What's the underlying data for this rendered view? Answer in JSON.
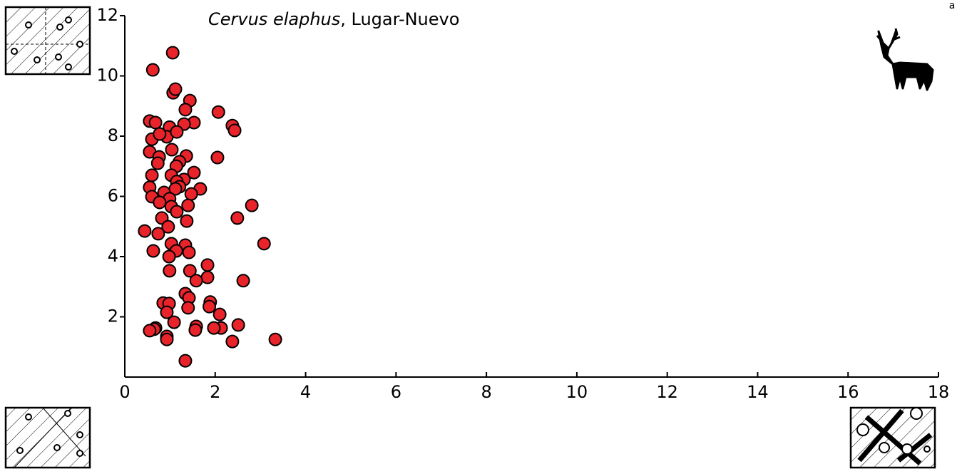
{
  "chart_data": {
    "type": "scatter",
    "title_species": "Cervus elaphus",
    "title_rest": ", Lugar-Nuevo",
    "panel_label": "a",
    "color": "#e8232a",
    "xlim": [
      0,
      18
    ],
    "xticks": [
      0,
      2,
      4,
      6,
      8,
      10,
      12,
      14,
      16,
      18
    ],
    "ylim": [
      0,
      12
    ],
    "yticks": [
      2,
      4,
      6,
      8,
      10,
      12
    ],
    "grid": false,
    "x": [
      1.06,
      0.62,
      1.07,
      1.12,
      1.44,
      2.07,
      1.34,
      0.55,
      0.68,
      1.53,
      1.31,
      0.99,
      2.38,
      2.43,
      0.6,
      0.93,
      1.15,
      0.77,
      0.55,
      1.04,
      0.76,
      1.36,
      2.05,
      0.73,
      1.21,
      1.14,
      0.6,
      1.03,
      1.53,
      1.31,
      1.15,
      0.55,
      0.87,
      1.21,
      1.67,
      1.12,
      0.6,
      1.47,
      0.99,
      0.77,
      2.81,
      1.4,
      1.03,
      1.15,
      0.82,
      1.37,
      2.49,
      0.96,
      0.44,
      0.74,
      3.08,
      1.03,
      1.34,
      0.63,
      1.14,
      1.42,
      0.98,
      1.83,
      1.44,
      0.99,
      1.83,
      1.58,
      2.62,
      1.34,
      1.42,
      1.89,
      1.87,
      1.4,
      0.85,
      0.98,
      0.93,
      2.1,
      1.09,
      2.51,
      1.58,
      2.13,
      1.97,
      0.68,
      0.65,
      0.55,
      1.56,
      0.93,
      0.93,
      3.33,
      2.38,
      1.34
    ],
    "values": [
      10.77,
      10.2,
      9.44,
      9.56,
      9.18,
      8.8,
      8.88,
      8.5,
      8.45,
      8.45,
      8.4,
      8.3,
      8.35,
      8.19,
      7.9,
      7.98,
      8.14,
      8.07,
      7.48,
      7.55,
      7.31,
      7.34,
      7.29,
      7.1,
      7.15,
      7.0,
      6.7,
      6.7,
      6.79,
      6.56,
      6.49,
      6.3,
      6.13,
      6.32,
      6.25,
      6.25,
      5.99,
      6.08,
      5.92,
      5.8,
      5.7,
      5.7,
      5.66,
      5.49,
      5.28,
      5.18,
      5.28,
      4.99,
      4.85,
      4.76,
      4.43,
      4.43,
      4.38,
      4.19,
      4.19,
      4.14,
      4.0,
      3.72,
      3.53,
      3.53,
      3.31,
      3.2,
      3.2,
      2.77,
      2.63,
      2.49,
      2.34,
      2.3,
      2.46,
      2.44,
      2.15,
      2.08,
      1.82,
      1.73,
      1.68,
      1.63,
      1.63,
      1.63,
      1.59,
      1.54,
      1.56,
      1.35,
      1.25,
      1.25,
      1.18,
      0.54
    ]
  }
}
